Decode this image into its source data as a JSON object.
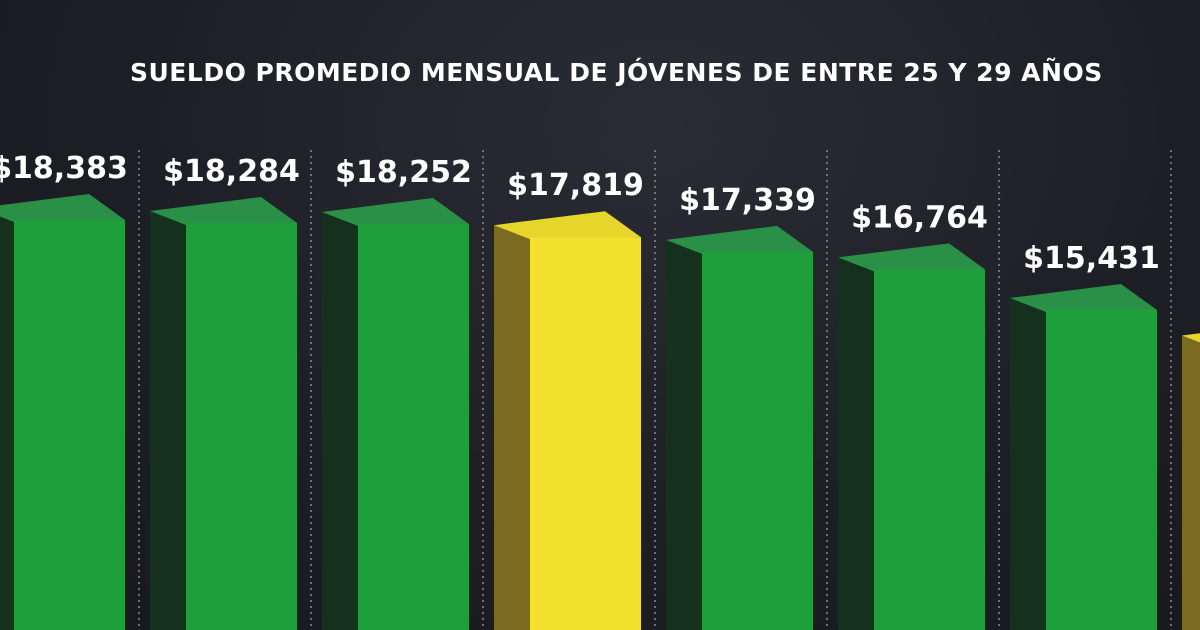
{
  "chart_data": {
    "type": "bar",
    "title": "SUELDO PROMEDIO MENSUAL DE JÓVENES DE ENTRE 25 Y 29 AÑOS",
    "xlabel": "",
    "ylabel": "",
    "grid": false,
    "values": [
      18383,
      18284,
      18252,
      17819,
      17339,
      16764,
      15431,
      14200
    ],
    "labels": [
      "$18,383",
      "$18,284",
      "$18,252",
      "$17,819",
      "$17,339",
      "$16,764",
      "$15,431",
      "$"
    ],
    "highlighted": [
      false,
      false,
      false,
      true,
      false,
      false,
      false,
      true
    ],
    "colors": {
      "bar": "#1f9e3c",
      "bar_top": "#2a8f47",
      "bar_side": "#15311d",
      "highlight": "#f2e12e",
      "highlight_top": "#e6d52a",
      "highlight_side": "#7b6b21",
      "separator": "#8a8c94",
      "label": "#ffffff"
    }
  }
}
